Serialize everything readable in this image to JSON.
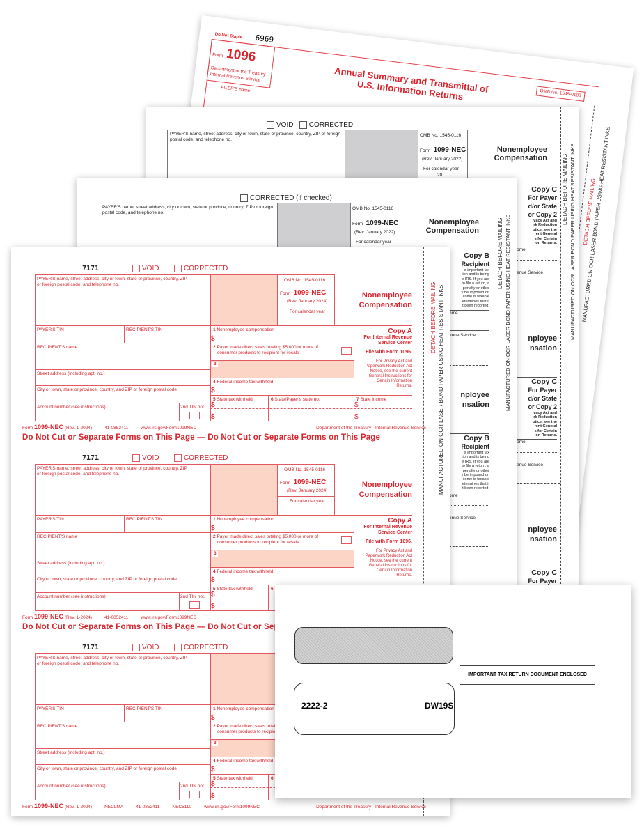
{
  "form_1096": {
    "do_not_staple": "Do Not Staple",
    "code": "6969",
    "form_label": "Form",
    "form_number": "1096",
    "department": "Department of the Treasury",
    "irs": "Internal Revenue Service",
    "filer_name": "FILER'S name",
    "title_line1": "Annual Summary and Transmittal of",
    "title_line2": "U.S. Information Returns",
    "omb": "OMB No. 1545-0108",
    "detach": "DETACH BEFORE MAILING",
    "manufactured": "MANUFACTURED ON OCR LASER BOND PAPER USING HEAT RESISTANT INKS"
  },
  "copy_c_sheet": {
    "void": "VOID",
    "corrected": "CORRECTED",
    "payer_label": "PAYER'S name, street address, city or town, state or province, country, ZIP or foreign postal code, and telephone no.",
    "omb": "OMB No. 1545-0116",
    "form_label": "Form",
    "form_number": "1099-NEC",
    "rev": "(Rev. January 2022)",
    "calendar_year": "For calendar year",
    "year_prefix": "20",
    "title1": "Nonemployee",
    "title2": "Compensation",
    "partial_title1": "nployee",
    "partial_title2": "nsation",
    "copy": "Copy C",
    "copy_line1": "For Payer",
    "copy_line2": "d/or State",
    "copy_line3": "or Copy 2",
    "privacy": [
      "vacy Act and",
      "rk Reduction",
      "otice, see the",
      "rent General",
      "s for Certain",
      "ion Returns."
    ],
    "income": "ome",
    "service": "enue Service",
    "detach": "DETACH BEFORE MAILING",
    "manufactured": "MANUFACTURED ON OCR LASER BOND PAPER USING HEAT RESISTANT INKS"
  },
  "copy_b_sheet": {
    "corrected": "CORRECTED (if checked)",
    "payer_label": "PAYER'S name, street address, city or town, state or province, country, ZIP or foreign postal code, and telephone no.",
    "omb": "OMB No. 1545-0116",
    "form_label": "Form",
    "form_number": "1099-NEC",
    "rev": "(Rev. January 2022)",
    "calendar_year": "For calendar year",
    "title1": "Nonemployee",
    "title2": "Compensation",
    "partial_title1": "nployee",
    "partial_title2": "nsation",
    "copy": "Copy B",
    "copy_line1": "Recipient",
    "notice": [
      "is important tax",
      "tion and is being",
      "e IRS. If you are",
      "to file a return, a",
      "penalty or other",
      "y be imposed on",
      "come is taxable",
      "etermines that it",
      "t been reported."
    ],
    "income": "ome",
    "service": "enue Service",
    "detach": "DETACH BEFORE MAILING",
    "manufactured": "MANUFACTURED ON OCR LASER BOND PAPER USING HEAT RESISTANT INKS"
  },
  "copy_a": {
    "codes": [
      "7171",
      "7171",
      "7171"
    ],
    "void": "VOID",
    "corrected": "CORRECTED",
    "payer_label": "PAYER'S name, street address, city or town, state or province, country, ZIP",
    "payer_label2": "or foreign postal code, and telephone no.",
    "omb": "OMB No. 1545-0116",
    "form_label": "Form",
    "form_number": "1099-NEC",
    "rev": "(Rev. January 2024)",
    "calendar_year": "For calendar year",
    "title1": "Nonemployee",
    "title2": "Compensation",
    "payer_tin": "PAYER'S TIN",
    "recipient_tin": "RECIPIENT'S TIN",
    "box1_num": "1",
    "box1": "Nonemployee compensation",
    "dollar": "$",
    "box2_num": "2",
    "box2_line1": "Payer made direct sales totaling $5,000 or more of",
    "box2_line2": "consumer products to recipient for resale",
    "box3_num": "3",
    "recipient_name": "RECIPIENT'S name",
    "street": "Street address (including apt. no.)",
    "city": "City or town, state or province, country, and ZIP or foreign postal code",
    "account": "Account number (see instructions)",
    "tin_not": "2nd TIN not.",
    "box4_num": "4",
    "box4": "Federal income tax withheld",
    "box5_num": "5",
    "box5": "State tax withheld",
    "box6_num": "6",
    "box6": "State/Payer's state no.",
    "box7_num": "7",
    "box7": "State income",
    "copy": "Copy A",
    "copy_line1": "For Internal Revenue",
    "copy_line2": "Service Center",
    "file_with": "File with Form 1096.",
    "privacy": [
      "For Privacy Act and",
      "Paperwork Reduction Act",
      "Notice, see the current",
      "General Instructions for",
      "Certain Information",
      "Returns."
    ],
    "footer_form": "Form",
    "footer_number": "1099-NEC",
    "footer_rev": "(Rev. 1-2024)",
    "footer_ein": "41-0852411",
    "footer_url": "www.irs.gov/Form1099NEC",
    "footer_dept": "Department of the Treasury - Internal Revenue Service",
    "footer_last_prefix": "NECLMA",
    "footer_last_suffix": "NEC5110",
    "do_not_cut": "Do Not Cut or Separate Forms on This Page — Do Not Cut or Separate Forms on This Page",
    "detach": "DETACH BEFORE MAILING",
    "manufactured": "MANUFACTURED ON OCR LASER BOND PAPER USING HEAT RESISTANT INKS"
  },
  "envelope": {
    "code_left": "2222-2",
    "code_right": "DW19S",
    "notice": "IMPORTANT TAX RETURN DOCUMENT ENCLOSED"
  },
  "colors": {
    "form_red": "#d9262e",
    "shade": "#fcd5c6",
    "gray_shade": "#cfcfd1"
  }
}
